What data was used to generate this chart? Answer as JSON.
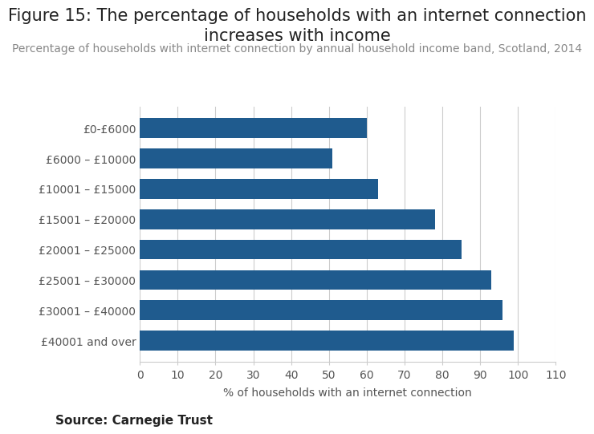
{
  "title": "Figure 15: The percentage of households with an internet connection\nincreases with income",
  "subtitle": "Percentage of households with internet connection by annual household income band, Scotland, 2014",
  "categories": [
    "£40001 and over",
    "£30001 – £40000",
    "£25001 – £30000",
    "£20001 – £25000",
    "£15001 – £20000",
    "£10001 – £15000",
    "£6000 – £10000",
    "£0-£6000"
  ],
  "values": [
    99,
    96,
    93,
    85,
    78,
    63,
    51,
    60
  ],
  "bar_color": "#1f5b8e",
  "xlabel": "% of households with an internet connection",
  "xlim": [
    0,
    110
  ],
  "xticks": [
    0,
    10,
    20,
    30,
    40,
    50,
    60,
    70,
    80,
    90,
    100,
    110
  ],
  "source": "Source: Carnegie Trust",
  "title_fontsize": 15,
  "subtitle_fontsize": 10,
  "xlabel_fontsize": 10,
  "ytick_fontsize": 10,
  "xtick_fontsize": 10,
  "source_fontsize": 11,
  "background_color": "#ffffff",
  "grid_color": "#cccccc"
}
